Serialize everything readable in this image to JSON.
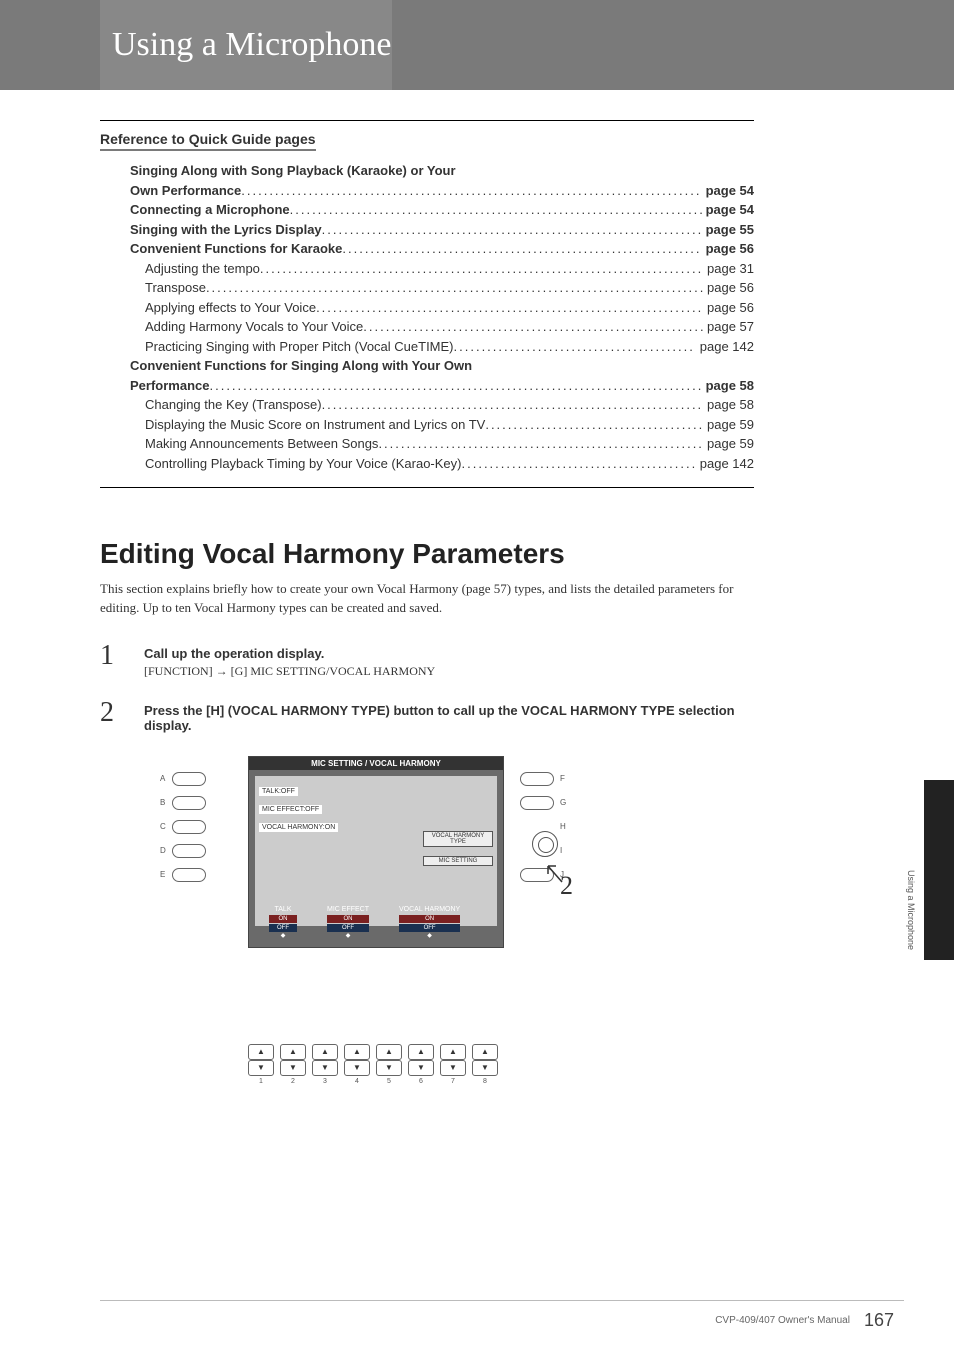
{
  "chapter_title": "Using a Microphone",
  "reference_heading": "Reference to Quick Guide pages",
  "toc": [
    {
      "label": "Singing Along with Song Playback (Karaoke) or Your Own Performance",
      "page": "page 54",
      "bold": true,
      "indent": 1,
      "wrap": true
    },
    {
      "label": "Connecting a Microphone",
      "page": "page 54",
      "bold": true,
      "indent": 1
    },
    {
      "label": "Singing with the Lyrics Display",
      "page": "page 55",
      "bold": true,
      "indent": 1
    },
    {
      "label": "Convenient Functions for Karaoke",
      "page": "page 56",
      "bold": true,
      "indent": 1
    },
    {
      "label": "Adjusting the tempo",
      "page": "page 31",
      "bold": false,
      "indent": 2
    },
    {
      "label": "Transpose",
      "page": "page 56",
      "bold": false,
      "indent": 2
    },
    {
      "label": "Applying effects to Your Voice",
      "page": "page 56",
      "bold": false,
      "indent": 2
    },
    {
      "label": "Adding Harmony Vocals to Your Voice",
      "page": "page 57",
      "bold": false,
      "indent": 2
    },
    {
      "label": "Practicing Singing with Proper Pitch (Vocal CueTIME)",
      "page": "page 142",
      "bold": false,
      "indent": 2
    },
    {
      "label": "Convenient Functions for Singing Along with Your Own Performance",
      "page": "page 58",
      "bold": true,
      "indent": 1,
      "wrap": true
    },
    {
      "label": "Changing the Key (Transpose)",
      "page": "page 58",
      "bold": false,
      "indent": 2
    },
    {
      "label": "Displaying the Music Score on Instrument and Lyrics on TV",
      "page": "page 59",
      "bold": false,
      "indent": 2
    },
    {
      "label": "Making Announcements Between Songs",
      "page": "page 59",
      "bold": false,
      "indent": 2
    },
    {
      "label": "Controlling Playback Timing by Your Voice (Karao-Key)",
      "page": "page 142",
      "bold": false,
      "indent": 2
    }
  ],
  "section_title": "Editing Vocal Harmony Parameters",
  "section_intro": "This section explains briefly how to create your own Vocal Harmony (page 57) types, and lists the detailed parameters for editing. Up to ten Vocal Harmony types can be created and saved.",
  "steps": [
    {
      "num": "1",
      "title": "Call up the operation display.",
      "detail": "[FUNCTION] → [G] MIC SETTING/VOCAL HARMONY"
    },
    {
      "num": "2",
      "title": "Press the [H] (VOCAL HARMONY TYPE) button to call up the VOCAL HARMONY TYPE selection display.",
      "detail": ""
    }
  ],
  "screen": {
    "title": "MIC SETTING / VOCAL HARMONY",
    "status": [
      "TALK:OFF",
      "MIC EFFECT:OFF",
      "VOCAL HARMONY:ON"
    ],
    "right_buttons": [
      "VOCAL HARMONY TYPE",
      "MIC SETTING"
    ],
    "toggles": [
      {
        "label": "TALK",
        "on": "ON",
        "off": "OFF"
      },
      {
        "label": "MIC EFFECT",
        "on": "ON",
        "off": "OFF"
      },
      {
        "label": "VOCAL HARMONY",
        "on": "ON",
        "off": "OFF"
      }
    ]
  },
  "side_letters_left": [
    "A",
    "B",
    "C",
    "D",
    "E"
  ],
  "side_letters_right": [
    "F",
    "G",
    "H",
    "I",
    "J"
  ],
  "bottom_nums": [
    "1",
    "2",
    "3",
    "4",
    "5",
    "6",
    "7",
    "8"
  ],
  "callout": "2",
  "side_tab_text": "Using a Microphone",
  "footer_model": "CVP-409/407 Owner's Manual",
  "footer_page": "167"
}
